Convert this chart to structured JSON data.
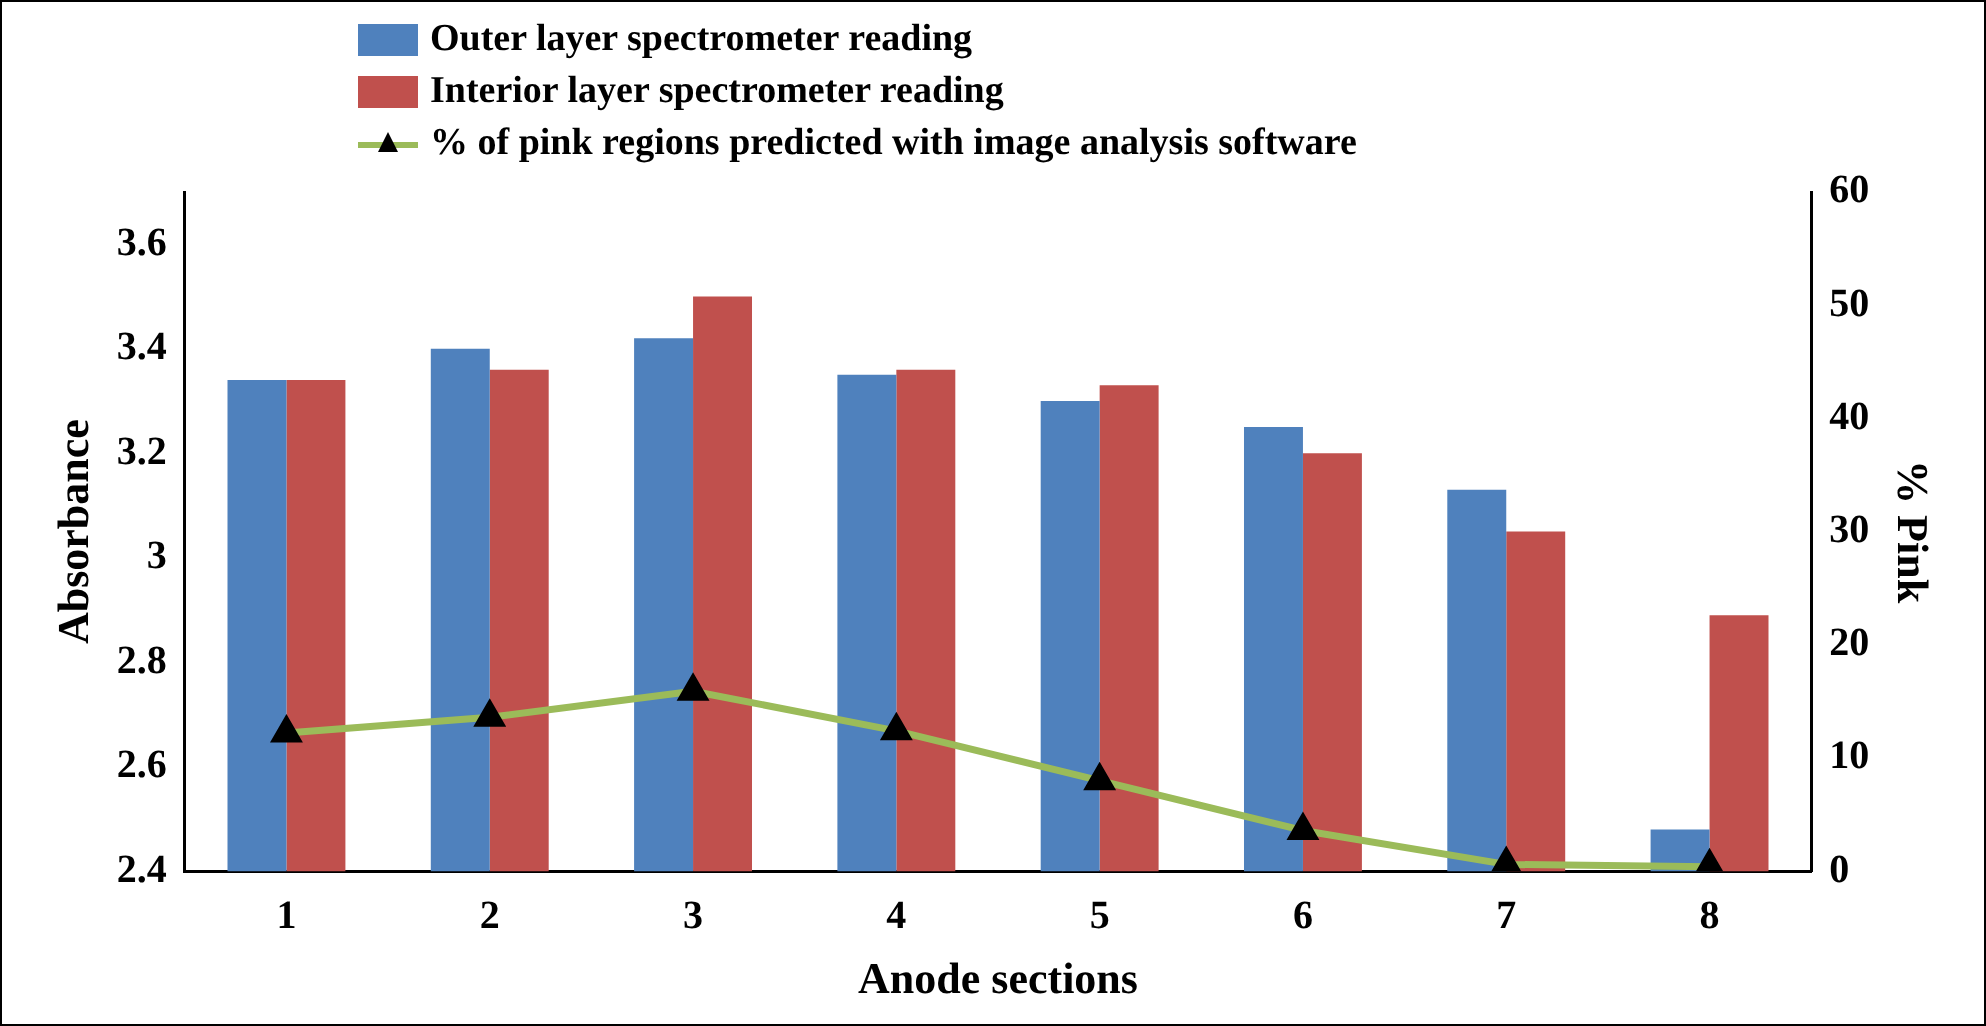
{
  "chart_data": {
    "type": "bar",
    "xlabel": "Anode sections",
    "ylabel": "Absorbance",
    "y2label": "% Pink",
    "categories": [
      "1",
      "2",
      "3",
      "4",
      "5",
      "6",
      "7",
      "8"
    ],
    "series": [
      {
        "name": "Outer layer spectrometer reading",
        "color": "#4f81bd",
        "values": [
          3.34,
          3.4,
          3.42,
          3.35,
          3.3,
          3.25,
          3.13,
          2.48
        ]
      },
      {
        "name": "Interior layer spectrometer reading",
        "color": "#c0504d",
        "values": [
          3.34,
          3.36,
          3.5,
          3.36,
          3.33,
          3.2,
          3.05,
          2.89
        ]
      },
      {
        "name": "% of pink regions predicted with image analysis software",
        "type": "line",
        "axis": "y2",
        "color": "#9bbb59",
        "marker": "triangle",
        "values": [
          12.2,
          13.6,
          15.9,
          12.4,
          8,
          3.6,
          0.6,
          0.4
        ]
      }
    ],
    "ylim": [
      2.4,
      3.7
    ],
    "yticks": [
      2.4,
      2.6,
      2.8,
      3,
      3.2,
      3.4,
      3.6
    ],
    "y2lim": [
      0,
      60
    ],
    "y2ticks": [
      0,
      10,
      20,
      30,
      40,
      50,
      60
    ],
    "grid": false,
    "legend": "top"
  }
}
